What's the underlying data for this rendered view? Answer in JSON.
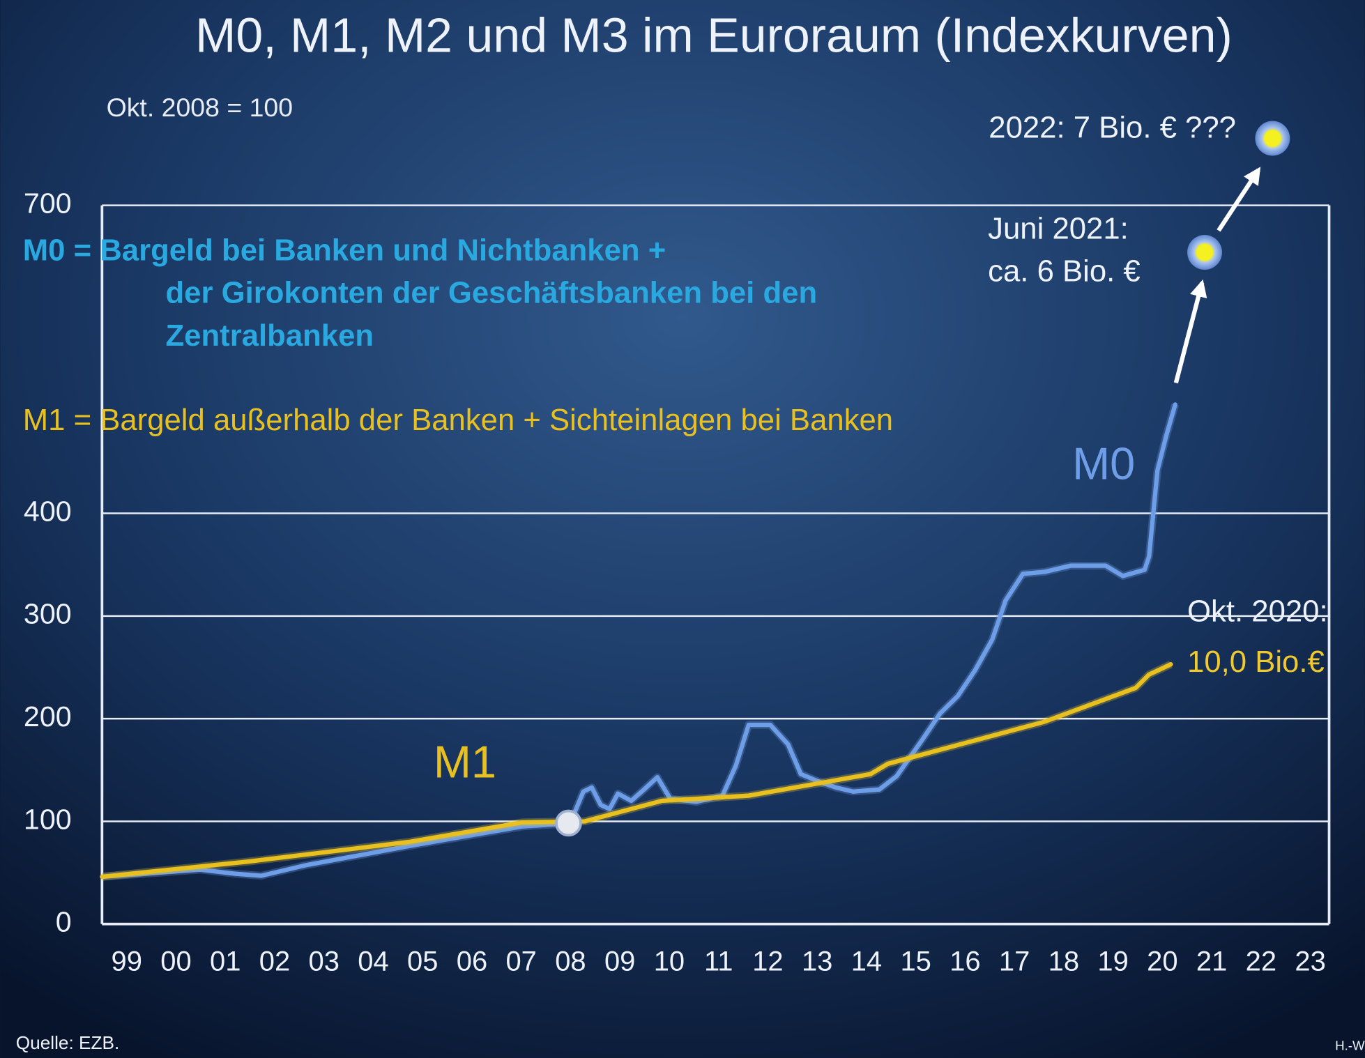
{
  "chart_data": {
    "type": "line",
    "title": "M0, M1, M2 und M3 im Euroraum (Indexkurven)",
    "subtitle": "Okt. 2008 = 100",
    "definitions": [
      "M0 = Bargeld bei Banken und Nichtbanken +",
      "der Girokonten der Geschäftsbanken bei den",
      "Zentralbanken",
      "M1 = Bargeld außerhalb der Banken + Sichteinlagen bei Banken"
    ],
    "annotations": [
      "2022: 7 Bio. € ???",
      "Juni 2021:",
      "ca. 6 Bio. €",
      "Okt. 2020:",
      "10,0 Bio.€"
    ],
    "source": "Quelle: EZB.",
    "author": "H.-W",
    "xlim": [
      1999,
      2023.88
    ],
    "ylim": [
      0,
      700
    ],
    "xticks": [
      {
        "value": 1999.5,
        "label": "99"
      },
      {
        "value": 2000.5,
        "label": "00"
      },
      {
        "value": 2001.5,
        "label": "01"
      },
      {
        "value": 2002.5,
        "label": "02"
      },
      {
        "value": 2003.5,
        "label": "03"
      },
      {
        "value": 2004.5,
        "label": "04"
      },
      {
        "value": 2005.5,
        "label": "05"
      },
      {
        "value": 2006.5,
        "label": "06"
      },
      {
        "value": 2007.5,
        "label": "07"
      },
      {
        "value": 2008.5,
        "label": "08"
      },
      {
        "value": 2009.5,
        "label": "09"
      },
      {
        "value": 2010.5,
        "label": "10"
      },
      {
        "value": 2011.5,
        "label": "11"
      },
      {
        "value": 2012.5,
        "label": "12"
      },
      {
        "value": 2013.5,
        "label": "13"
      },
      {
        "value": 2014.5,
        "label": "14"
      },
      {
        "value": 2015.5,
        "label": "15"
      },
      {
        "value": 2016.5,
        "label": "16"
      },
      {
        "value": 2017.5,
        "label": "17"
      },
      {
        "value": 2018.5,
        "label": "18"
      },
      {
        "value": 2019.5,
        "label": "19"
      },
      {
        "value": 2020.5,
        "label": "20"
      },
      {
        "value": 2021.5,
        "label": "21"
      },
      {
        "value": 2022.5,
        "label": "22"
      },
      {
        "value": 2023.5,
        "label": "23"
      }
    ],
    "yticks": [
      0,
      100,
      200,
      300,
      400,
      700
    ],
    "grid": true,
    "series": [
      {
        "name": "M0",
        "color": "#6f9ee8",
        "x": [
          1999,
          2000.99,
          2001.7,
          2002.23,
          2003.11,
          2005.23,
          2007.52,
          2008.49,
          2008.76,
          2008.93,
          2009.11,
          2009.29,
          2009.46,
          2009.73,
          2009.99,
          2010.26,
          2010.52,
          2011.05,
          2011.58,
          2011.85,
          2012.11,
          2012.55,
          2012.91,
          2013.17,
          2013.52,
          2013.88,
          2014.23,
          2014.76,
          2015.11,
          2015.64,
          2015.99,
          2016.35,
          2016.7,
          2017.05,
          2017.32,
          2017.67,
          2018.11,
          2018.64,
          2019.35,
          2019.7,
          2020.14,
          2020.23,
          2020.4,
          2020.58,
          2020.76
        ],
        "values": [
          46,
          53,
          49,
          47,
          57,
          76,
          95,
          98,
          129,
          133,
          116,
          112,
          127,
          120,
          131,
          143,
          122,
          119,
          125,
          154,
          194,
          194,
          175,
          146,
          139,
          133,
          129,
          131,
          144,
          180,
          205,
          222,
          247,
          277,
          315,
          341,
          343,
          349,
          349,
          339,
          345,
          358,
          442,
          476,
          506
        ]
      },
      {
        "name": "M1",
        "color": "#e8c020",
        "x": [
          1999,
          2002.0,
          2005.23,
          2007.52,
          2008.79,
          2010.35,
          2012.11,
          2014.58,
          2014.93,
          2018.11,
          2019.96,
          2020.23,
          2020.67
        ],
        "values": [
          46,
          61,
          80,
          99,
          100,
          120,
          125,
          146,
          156,
          197,
          230,
          243,
          253
        ]
      }
    ]
  }
}
